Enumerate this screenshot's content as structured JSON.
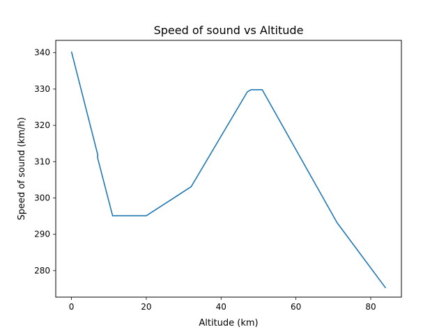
{
  "chart_data": {
    "type": "line",
    "title": "Speed of sound vs Altitude",
    "xlabel": "Altitude (km)",
    "ylabel": "Speed of sound (km/h)",
    "xlim": [
      -4.2,
      88.2
    ],
    "ylim": [
      272.7,
      343.4
    ],
    "xticks": [
      0,
      20,
      40,
      60,
      80
    ],
    "yticks": [
      280,
      290,
      300,
      310,
      320,
      330,
      340
    ],
    "grid": false,
    "legend": "none",
    "series": [
      {
        "color": "#1f77b4",
        "x": [
          0,
          7.0,
          7.0,
          11,
          20,
          32,
          47,
          48,
          51,
          71,
          84.0
        ],
        "y": [
          340.3,
          312.0,
          311.0,
          295.1,
          295.1,
          303.1,
          329.2,
          329.8,
          329.8,
          293.2,
          275.2
        ]
      }
    ]
  }
}
